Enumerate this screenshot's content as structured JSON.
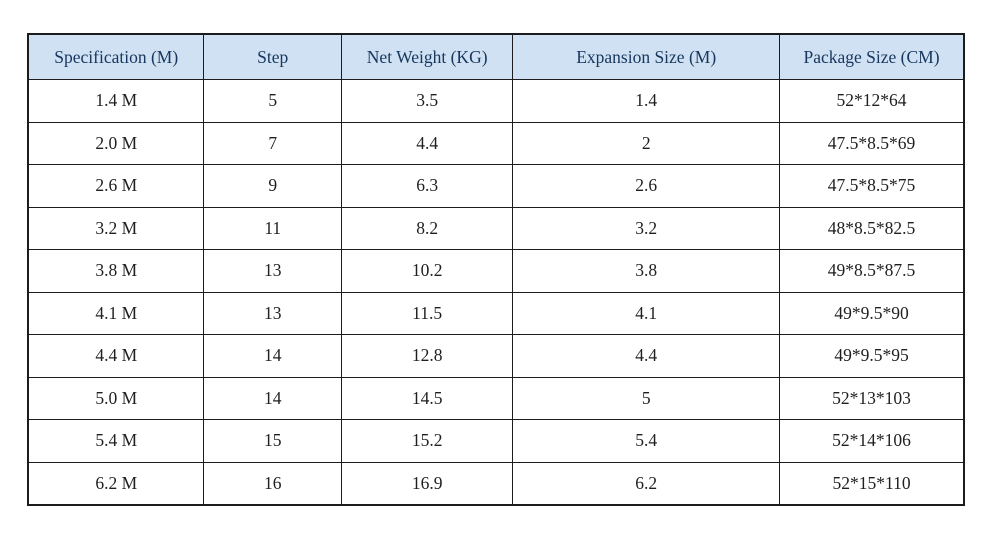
{
  "table": {
    "columns": [
      "Specification (M)",
      "Step",
      "Net Weight (KG)",
      "Expansion Size (M)",
      "Package Size (CM)"
    ],
    "column_widths_pct": [
      18.8,
      14.7,
      18.3,
      28.5,
      19.7
    ],
    "rows": [
      [
        "1.4 M",
        "5",
        "3.5",
        "1.4",
        "52*12*64"
      ],
      [
        "2.0 M",
        "7",
        "4.4",
        "2",
        "47.5*8.5*69"
      ],
      [
        "2.6 M",
        "9",
        "6.3",
        "2.6",
        "47.5*8.5*75"
      ],
      [
        "3.2 M",
        "11",
        "8.2",
        "3.2",
        "48*8.5*82.5"
      ],
      [
        "3.8 M",
        "13",
        "10.2",
        "3.8",
        "49*8.5*87.5"
      ],
      [
        "4.1 M",
        "13",
        "11.5",
        "4.1",
        "49*9.5*90"
      ],
      [
        "4.4 M",
        "14",
        "12.8",
        "4.4",
        "49*9.5*95"
      ],
      [
        "5.0 M",
        "14",
        "14.5",
        "5",
        "52*13*103"
      ],
      [
        "5.4 M",
        "15",
        "15.2",
        "5.4",
        "52*14*106"
      ],
      [
        "6.2 M",
        "16",
        "16.9",
        "6.2",
        "52*15*110"
      ]
    ],
    "colors": {
      "header_bg": "#cfe1f2",
      "header_text": "#17375e",
      "cell_text": "#1f1f1f",
      "border": "#1c1c1c"
    }
  }
}
